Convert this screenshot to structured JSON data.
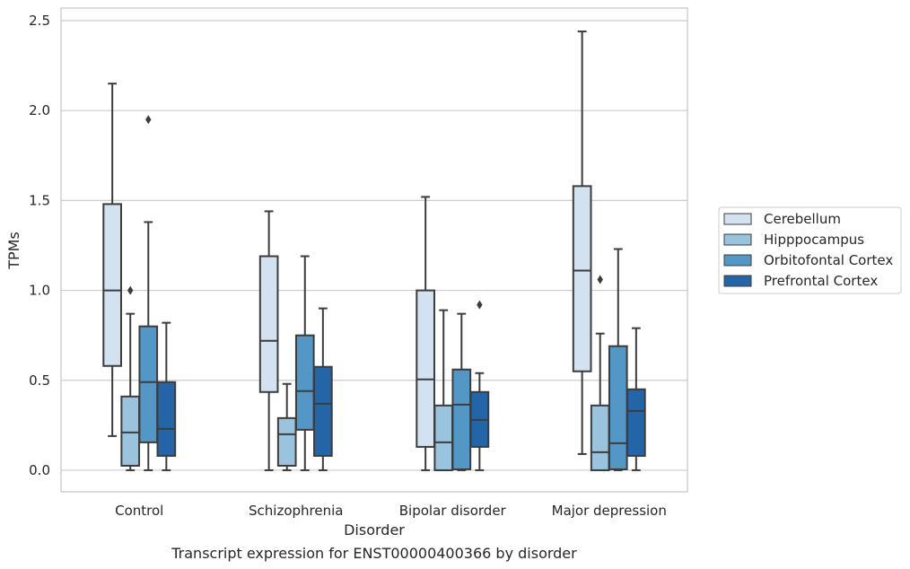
{
  "chart_data": {
    "type": "boxplot",
    "title": "Transcript expression for ENST00000400366 by disorder",
    "xlabel": "Disorder",
    "ylabel": "TPMs",
    "ylim": [
      -0.12,
      2.57
    ],
    "yticks": [
      0.0,
      0.5,
      1.0,
      1.5,
      2.0,
      2.5
    ],
    "ytick_labels": [
      "0.0",
      "0.5",
      "1.0",
      "1.5",
      "2.0",
      "2.5"
    ],
    "grid": "horizontal",
    "legend_position": "right",
    "categories": [
      "Control",
      "Schizophrenia",
      "Bipolar disorder",
      "Major depression"
    ],
    "series": [
      {
        "name": "Cerebellum",
        "color": "#d3e2f1",
        "boxes": [
          {
            "whislo": 0.19,
            "q1": 0.58,
            "med": 1.0,
            "q3": 1.48,
            "whishi": 2.15,
            "fliers": []
          },
          {
            "whislo": 0.0,
            "q1": 0.435,
            "med": 0.72,
            "q3": 1.19,
            "whishi": 1.44,
            "fliers": []
          },
          {
            "whislo": 0.0,
            "q1": 0.13,
            "med": 0.505,
            "q3": 1.0,
            "whishi": 1.52,
            "fliers": []
          },
          {
            "whislo": 0.09,
            "q1": 0.55,
            "med": 1.11,
            "q3": 1.58,
            "whishi": 2.44,
            "fliers": []
          }
        ]
      },
      {
        "name": "Hipppocampus",
        "color": "#9ac3de",
        "boxes": [
          {
            "whislo": 0.0,
            "q1": 0.025,
            "med": 0.21,
            "q3": 0.41,
            "whishi": 0.87,
            "fliers": [
              1.0
            ]
          },
          {
            "whislo": 0.0,
            "q1": 0.025,
            "med": 0.2,
            "q3": 0.29,
            "whishi": 0.48,
            "fliers": []
          },
          {
            "whislo": 0.0,
            "q1": 0.0,
            "med": 0.155,
            "q3": 0.36,
            "whishi": 0.89,
            "fliers": []
          },
          {
            "whislo": 0.0,
            "q1": 0.0,
            "med": 0.1,
            "q3": 0.36,
            "whishi": 0.76,
            "fliers": [
              1.06
            ]
          }
        ]
      },
      {
        "name": "Orbitofontal Cortex",
        "color": "#5297c6",
        "boxes": [
          {
            "whislo": 0.0,
            "q1": 0.155,
            "med": 0.49,
            "q3": 0.8,
            "whishi": 1.38,
            "fliers": [
              1.95
            ]
          },
          {
            "whislo": 0.0,
            "q1": 0.225,
            "med": 0.44,
            "q3": 0.75,
            "whishi": 1.19,
            "fliers": []
          },
          {
            "whislo": 0.0,
            "q1": 0.005,
            "med": 0.365,
            "q3": 0.56,
            "whishi": 0.87,
            "fliers": []
          },
          {
            "whislo": 0.0,
            "q1": 0.005,
            "med": 0.15,
            "q3": 0.69,
            "whishi": 1.23,
            "fliers": []
          }
        ]
      },
      {
        "name": "Prefrontal Cortex",
        "color": "#2465a7",
        "boxes": [
          {
            "whislo": 0.0,
            "q1": 0.08,
            "med": 0.23,
            "q3": 0.49,
            "whishi": 0.82,
            "fliers": []
          },
          {
            "whislo": 0.0,
            "q1": 0.08,
            "med": 0.37,
            "q3": 0.575,
            "whishi": 0.9,
            "fliers": []
          },
          {
            "whislo": 0.0,
            "q1": 0.13,
            "med": 0.28,
            "q3": 0.435,
            "whishi": 0.54,
            "fliers": [
              0.92
            ]
          },
          {
            "whislo": 0.0,
            "q1": 0.08,
            "med": 0.33,
            "q3": 0.45,
            "whishi": 0.79,
            "fliers": []
          }
        ]
      }
    ]
  }
}
